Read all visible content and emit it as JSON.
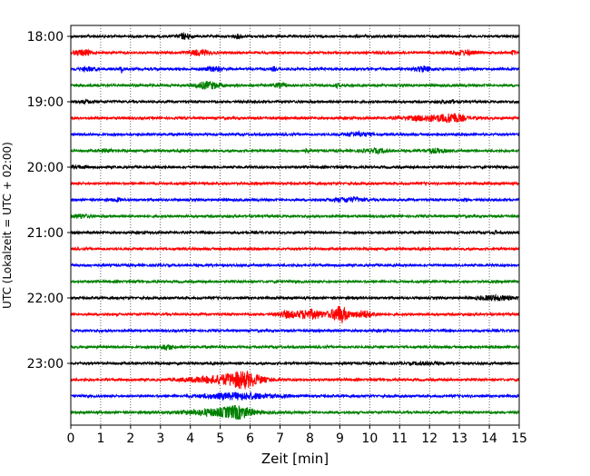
{
  "chart_data": {
    "type": "line",
    "title": "",
    "xlabel": "Zeit  [min]",
    "ylabel": "UTC (Lokalzeit = UTC + 02:00)",
    "xlim": [
      0,
      15
    ],
    "x_ticks": [
      "0",
      "1",
      "2",
      "3",
      "4",
      "5",
      "6",
      "7",
      "8",
      "9",
      "10",
      "11",
      "12",
      "13",
      "14",
      "15"
    ],
    "y_tick_labels": [
      "18:00",
      "19:00",
      "20:00",
      "21:00",
      "22:00",
      "23:00"
    ],
    "grid": "vertical dotted lines at each minute",
    "trace_interval_min": 15,
    "trace_colors": [
      "#000000",
      "#ff0000",
      "#0000ff",
      "#008000"
    ],
    "traces": [
      {
        "start": "18:00",
        "color": "#000000",
        "events": [
          {
            "t": 3.8,
            "amp": 0.45,
            "w": 0.15
          },
          {
            "t": 5.6,
            "amp": 0.3,
            "w": 0.08
          },
          {
            "t": 12.4,
            "amp": 0.25,
            "w": 0.05
          }
        ]
      },
      {
        "start": "18:15",
        "color": "#ff0000",
        "events": [
          {
            "t": 0.4,
            "amp": 0.45,
            "w": 0.2
          },
          {
            "t": 4.3,
            "amp": 0.45,
            "w": 0.25
          },
          {
            "t": 13.1,
            "amp": 0.35,
            "w": 0.3
          },
          {
            "t": 14.8,
            "amp": 0.4,
            "w": 0.05
          }
        ]
      },
      {
        "start": "18:30",
        "color": "#0000ff",
        "events": [
          {
            "t": 0.6,
            "amp": 0.3,
            "w": 0.2
          },
          {
            "t": 1.7,
            "amp": 0.5,
            "w": 0.05
          },
          {
            "t": 4.8,
            "amp": 0.35,
            "w": 0.2
          },
          {
            "t": 6.8,
            "amp": 0.3,
            "w": 0.06
          },
          {
            "t": 11.8,
            "amp": 0.45,
            "w": 0.2
          }
        ]
      },
      {
        "start": "18:45",
        "color": "#008000",
        "events": [
          {
            "t": 4.6,
            "amp": 0.6,
            "w": 0.3
          },
          {
            "t": 7.0,
            "amp": 0.35,
            "w": 0.15
          },
          {
            "t": 8.9,
            "amp": 0.3,
            "w": 0.06
          }
        ]
      },
      {
        "start": "19:00",
        "color": "#000000",
        "events": [
          {
            "t": 0.5,
            "amp": 0.2,
            "w": 0.2
          },
          {
            "t": 12.7,
            "amp": 0.2,
            "w": 0.2
          }
        ]
      },
      {
        "start": "19:15",
        "color": "#ff0000",
        "events": [
          {
            "t": 12.2,
            "amp": 0.5,
            "w": 0.7
          },
          {
            "t": 12.8,
            "amp": 0.5,
            "w": 0.2
          }
        ]
      },
      {
        "start": "19:30",
        "color": "#0000ff",
        "events": [
          {
            "t": 9.6,
            "amp": 0.35,
            "w": 0.3
          }
        ]
      },
      {
        "start": "19:45",
        "color": "#008000",
        "events": [
          {
            "t": 1.2,
            "amp": 0.2,
            "w": 0.15
          },
          {
            "t": 7.9,
            "amp": 0.4,
            "w": 0.04
          },
          {
            "t": 10.2,
            "amp": 0.3,
            "w": 0.3
          },
          {
            "t": 12.2,
            "amp": 0.3,
            "w": 0.3
          }
        ]
      },
      {
        "start": "20:00",
        "color": "#000000",
        "events": [
          {
            "t": 0.3,
            "amp": 0.15,
            "w": 0.2
          }
        ]
      },
      {
        "start": "20:15",
        "color": "#ff0000",
        "events": []
      },
      {
        "start": "20:30",
        "color": "#0000ff",
        "events": [
          {
            "t": 1.6,
            "amp": 0.4,
            "w": 0.08
          },
          {
            "t": 9.3,
            "amp": 0.35,
            "w": 0.4
          },
          {
            "t": 13.2,
            "amp": 0.5,
            "w": 0.03
          }
        ]
      },
      {
        "start": "20:45",
        "color": "#008000",
        "events": [
          {
            "t": 0.3,
            "amp": 0.3,
            "w": 0.2
          }
        ]
      },
      {
        "start": "21:00",
        "color": "#000000",
        "events": [
          {
            "t": 14.2,
            "amp": 0.3,
            "w": 0.04
          }
        ]
      },
      {
        "start": "21:15",
        "color": "#ff0000",
        "events": []
      },
      {
        "start": "21:30",
        "color": "#0000ff",
        "events": []
      },
      {
        "start": "21:45",
        "color": "#008000",
        "events": []
      },
      {
        "start": "22:00",
        "color": "#000000",
        "events": [
          {
            "t": 14.2,
            "amp": 0.4,
            "w": 0.4
          }
        ]
      },
      {
        "start": "22:15",
        "color": "#ff0000",
        "events": [
          {
            "t": 7.2,
            "amp": 0.5,
            "w": 0.2
          },
          {
            "t": 8.0,
            "amp": 0.8,
            "w": 0.35
          },
          {
            "t": 9.0,
            "amp": 1.5,
            "w": 0.2
          },
          {
            "t": 9.8,
            "amp": 0.6,
            "w": 0.25
          }
        ]
      },
      {
        "start": "22:30",
        "color": "#0000ff",
        "events": []
      },
      {
        "start": "22:45",
        "color": "#008000",
        "events": [
          {
            "t": 3.2,
            "amp": 0.45,
            "w": 0.15
          }
        ]
      },
      {
        "start": "23:00",
        "color": "#000000",
        "events": [
          {
            "t": 11.9,
            "amp": 0.2,
            "w": 0.3
          }
        ]
      },
      {
        "start": "23:15",
        "color": "#ff0000",
        "events": [
          {
            "t": 5.0,
            "amp": 0.6,
            "w": 0.8
          },
          {
            "t": 5.8,
            "amp": 1.1,
            "w": 0.4
          }
        ]
      },
      {
        "start": "23:30",
        "color": "#0000ff",
        "events": [
          {
            "t": 5.6,
            "amp": 0.55,
            "w": 0.8
          }
        ]
      },
      {
        "start": "23:45",
        "color": "#008000",
        "events": [
          {
            "t": 5.0,
            "amp": 0.6,
            "w": 0.8
          },
          {
            "t": 5.6,
            "amp": 0.7,
            "w": 0.3
          }
        ]
      }
    ]
  }
}
